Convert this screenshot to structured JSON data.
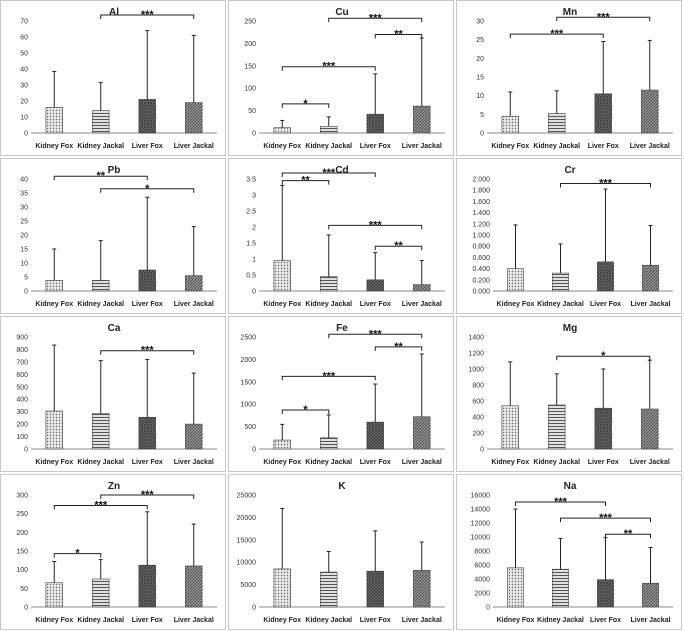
{
  "chart_data": [
    {
      "type": "bar",
      "title": "Al",
      "categories": [
        "Kidney Fox",
        "Kidney Jackal",
        "Liver Fox",
        "Liver Jackal"
      ],
      "values": [
        16,
        14,
        21,
        19
      ],
      "error_upper": [
        38.5,
        31.5,
        64,
        61
      ],
      "ylim": [
        0,
        70
      ],
      "yticks": [
        "0",
        "10",
        "20",
        "30",
        "40",
        "50",
        "60",
        "70"
      ],
      "annotations": [
        {
          "from": 1,
          "to": 3,
          "level": 74,
          "label": "***"
        }
      ]
    },
    {
      "type": "bar",
      "title": "Cu",
      "categories": [
        "Kidney Fox",
        "Kidney Jackal",
        "Liver Fox",
        "Liver Jackal"
      ],
      "values": [
        12,
        15,
        42,
        60
      ],
      "error_upper": [
        28,
        36,
        132,
        212
      ],
      "ylim": [
        0,
        250
      ],
      "yticks": [
        "0",
        "50",
        "100",
        "150",
        "200",
        "250"
      ],
      "annotations": [
        {
          "from": 0,
          "to": 1,
          "level": 65,
          "label": "*"
        },
        {
          "from": 0,
          "to": 2,
          "level": 148,
          "label": "***"
        },
        {
          "from": 2,
          "to": 3,
          "level": 220,
          "label": "**"
        },
        {
          "from": 1,
          "to": 3,
          "level": 256,
          "label": "***"
        }
      ]
    },
    {
      "type": "bar",
      "title": "Mn",
      "categories": [
        "Kidney Fox",
        "Kidney Jackal",
        "Liver Fox",
        "Liver Jackal"
      ],
      "values": [
        4.5,
        5.2,
        10.5,
        11.5
      ],
      "error_upper": [
        11,
        11.3,
        24.5,
        24.8
      ],
      "ylim": [
        0,
        30
      ],
      "yticks": [
        "0",
        "5",
        "10",
        "15",
        "20",
        "25",
        "30"
      ],
      "annotations": [
        {
          "from": 0,
          "to": 2,
          "level": 26.5,
          "label": "***"
        },
        {
          "from": 1,
          "to": 3,
          "level": 31,
          "label": "***"
        }
      ]
    },
    {
      "type": "bar",
      "title": "Pb",
      "categories": [
        "Kidney Fox",
        "Kidney Jackal",
        "Liver Fox",
        "Liver Jackal"
      ],
      "values": [
        3.8,
        3.8,
        7.5,
        5.5
      ],
      "error_upper": [
        15,
        18,
        33.5,
        23
      ],
      "ylim": [
        0,
        40
      ],
      "yticks": [
        "0",
        "5",
        "10",
        "15",
        "20",
        "25",
        "30",
        "35",
        "40"
      ],
      "annotations": [
        {
          "from": 0,
          "to": 2,
          "level": 41,
          "label": "**"
        },
        {
          "from": 1,
          "to": 3,
          "level": 36.5,
          "label": "*"
        }
      ]
    },
    {
      "type": "bar",
      "title": "Cd",
      "categories": [
        "Kidney Fox",
        "Kidney Jackal",
        "Liver Fox",
        "Liver Jackal"
      ],
      "values": [
        0.95,
        0.45,
        0.35,
        0.2
      ],
      "error_upper": [
        3.3,
        1.75,
        1.2,
        0.95
      ],
      "ylim": [
        0,
        3.5
      ],
      "yticks": [
        "0",
        "0.5",
        "1",
        "1.5",
        "2",
        "2.5",
        "3",
        "3.5"
      ],
      "annotations": [
        {
          "from": 0,
          "to": 1,
          "level": 3.45,
          "label": "**"
        },
        {
          "from": 0,
          "to": 2,
          "level": 3.7,
          "label": "***"
        },
        {
          "from": 1,
          "to": 3,
          "level": 2.05,
          "label": "***"
        },
        {
          "from": 2,
          "to": 3,
          "level": 1.4,
          "label": "**"
        }
      ]
    },
    {
      "type": "bar",
      "title": "Cr",
      "categories": [
        "Kidney Fox",
        "Kidney Jackal",
        "Liver Fox",
        "Liver Jackal"
      ],
      "values": [
        0.4,
        0.32,
        0.52,
        0.46
      ],
      "error_upper": [
        1.18,
        0.84,
        1.82,
        1.17
      ],
      "ylim": [
        0,
        2
      ],
      "yticks": [
        "0.000",
        "0.200",
        "0.400",
        "0.600",
        "0.800",
        "1.000",
        "1.200",
        "1.400",
        "1.600",
        "1.800",
        "2.000"
      ],
      "annotations": [
        {
          "from": 1,
          "to": 3,
          "level": 1.92,
          "label": "***"
        }
      ]
    },
    {
      "type": "bar",
      "title": "Ca",
      "categories": [
        "Kidney Fox",
        "Kidney Jackal",
        "Liver Fox",
        "Liver Jackal"
      ],
      "values": [
        305,
        285,
        255,
        200
      ],
      "error_upper": [
        835,
        710,
        720,
        610
      ],
      "ylim": [
        0,
        900
      ],
      "yticks": [
        "0",
        "100",
        "200",
        "300",
        "400",
        "500",
        "600",
        "700",
        "800",
        "900"
      ],
      "annotations": [
        {
          "from": 1,
          "to": 3,
          "level": 790,
          "label": "***"
        }
      ]
    },
    {
      "type": "bar",
      "title": "Fe",
      "categories": [
        "Kidney Fox",
        "Kidney Jackal",
        "Liver Fox",
        "Liver Jackal"
      ],
      "values": [
        200,
        250,
        600,
        720
      ],
      "error_upper": [
        550,
        760,
        1450,
        2120
      ],
      "ylim": [
        0,
        2500
      ],
      "yticks": [
        "0",
        "500",
        "1000",
        "1500",
        "2000",
        "2500"
      ],
      "annotations": [
        {
          "from": 0,
          "to": 1,
          "level": 870,
          "label": "*"
        },
        {
          "from": 0,
          "to": 2,
          "level": 1620,
          "label": "***"
        },
        {
          "from": 2,
          "to": 3,
          "level": 2280,
          "label": "**"
        },
        {
          "from": 1,
          "to": 3,
          "level": 2560,
          "label": "***"
        }
      ]
    },
    {
      "type": "bar",
      "title": "Mg",
      "categories": [
        "Kidney Fox",
        "Kidney Jackal",
        "Liver Fox",
        "Liver Jackal"
      ],
      "values": [
        540,
        550,
        510,
        500
      ],
      "error_upper": [
        1090,
        940,
        1000,
        1110
      ],
      "ylim": [
        0,
        1400
      ],
      "yticks": [
        "0",
        "200",
        "400",
        "600",
        "800",
        "1000",
        "1200",
        "1400"
      ],
      "annotations": [
        {
          "from": 1,
          "to": 3,
          "level": 1160,
          "label": "*"
        }
      ]
    },
    {
      "type": "bar",
      "title": "Zn",
      "categories": [
        "Kidney Fox",
        "Kidney Jackal",
        "Liver Fox",
        "Liver Jackal"
      ],
      "values": [
        65,
        75,
        112,
        110
      ],
      "error_upper": [
        122,
        127,
        255,
        222
      ],
      "ylim": [
        0,
        300
      ],
      "yticks": [
        "0",
        "50",
        "100",
        "150",
        "200",
        "250",
        "300"
      ],
      "annotations": [
        {
          "from": 0,
          "to": 1,
          "level": 143,
          "label": "*"
        },
        {
          "from": 0,
          "to": 2,
          "level": 272,
          "label": "***"
        },
        {
          "from": 1,
          "to": 3,
          "level": 300,
          "label": "***"
        }
      ]
    },
    {
      "type": "bar",
      "title": "K",
      "categories": [
        "Kidney Fox",
        "Kidney Jackal",
        "Liver Fox",
        "Liver Jackal"
      ],
      "values": [
        8500,
        7800,
        8000,
        8200
      ],
      "error_upper": [
        22000,
        12400,
        17000,
        14500
      ],
      "ylim": [
        0,
        25000
      ],
      "yticks": [
        "0",
        "5000",
        "10000",
        "15000",
        "20000",
        "25000"
      ],
      "annotations": []
    },
    {
      "type": "bar",
      "title": "Na",
      "categories": [
        "Kidney Fox",
        "Kidney Jackal",
        "Liver Fox",
        "Liver Jackal"
      ],
      "values": [
        5600,
        5400,
        3900,
        3400
      ],
      "error_upper": [
        14000,
        9800,
        9900,
        8500
      ],
      "ylim": [
        0,
        16000
      ],
      "yticks": [
        "0",
        "2000",
        "4000",
        "6000",
        "8000",
        "10000",
        "12000",
        "14000",
        "16000"
      ],
      "annotations": [
        {
          "from": 0,
          "to": 2,
          "level": 15000,
          "label": "***"
        },
        {
          "from": 1,
          "to": 3,
          "level": 12700,
          "label": "***"
        },
        {
          "from": 2,
          "to": 3,
          "level": 10400,
          "label": "**"
        }
      ]
    }
  ],
  "colors": {
    "bar_fill": "#9a9a9a",
    "bar_stroke": "#444444",
    "axis": "#888888",
    "text": "#222222"
  }
}
